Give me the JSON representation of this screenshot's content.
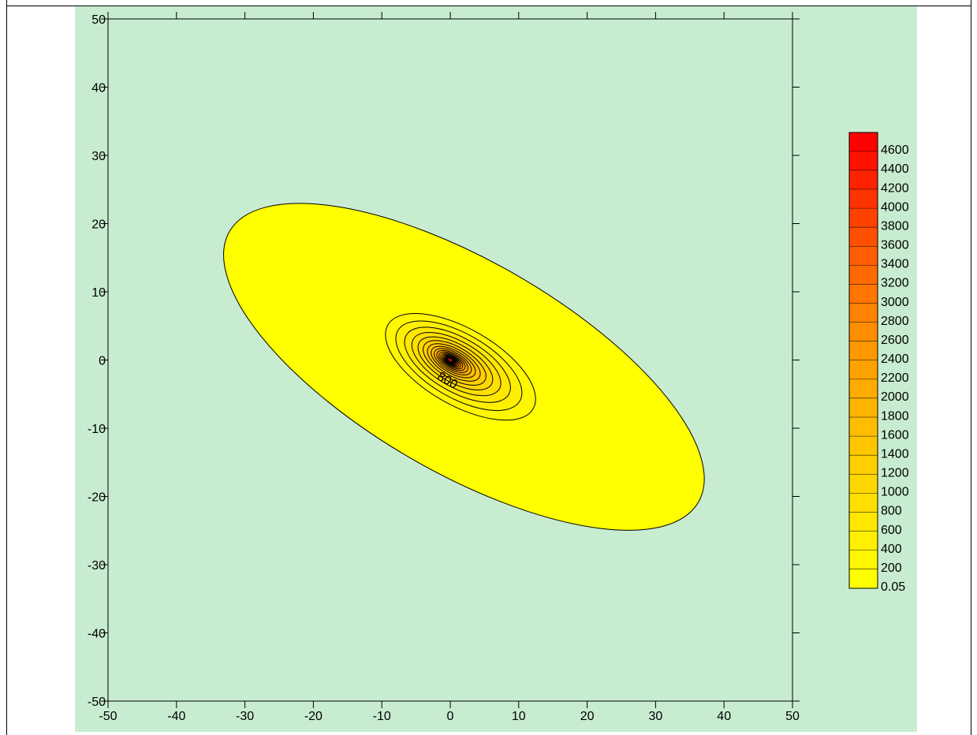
{
  "chart_data": {
    "type": "contour",
    "title": "",
    "xlabel": "",
    "ylabel": "",
    "xlim": [
      -50,
      50
    ],
    "ylim": [
      -50,
      50
    ],
    "x_ticks": [
      -50,
      -40,
      -30,
      -20,
      -10,
      0,
      10,
      20,
      30,
      40,
      50
    ],
    "y_ticks": [
      -50,
      -40,
      -30,
      -20,
      -10,
      0,
      10,
      20,
      30,
      40,
      50
    ],
    "x_tick_labels": [
      "-50",
      "-40",
      "-30",
      "-20",
      "-10",
      "0",
      "10",
      "20",
      "30",
      "40",
      "50"
    ],
    "y_tick_labels": [
      "-50",
      "-40",
      "-30",
      "-20",
      "-10",
      "0",
      "10",
      "20",
      "30",
      "40",
      "50"
    ],
    "peak_location": [
      0,
      0
    ],
    "plume_orientation": "major axis running from upper-left to lower-right",
    "outer_contour_level": 0.05,
    "outer_contour_extent": {
      "x": [
        -33,
        37
      ],
      "y": [
        -26,
        24
      ]
    },
    "inner_contour_extent": {
      "x": [
        -11,
        14
      ],
      "y": [
        -10,
        8
      ]
    },
    "contour_interval": 200,
    "contour_levels": [
      0.05,
      200,
      400,
      600,
      800,
      1000,
      1200,
      1400,
      1600,
      1800,
      2000,
      2200,
      2400,
      2600,
      2800,
      3000,
      3200,
      3400,
      3600,
      3800,
      4000,
      4200,
      4400,
      4600
    ],
    "contour_label": {
      "text": "800",
      "x": -0.7,
      "y": -3.5
    },
    "colorbar": {
      "position": "right",
      "labels": [
        "4600",
        "4400",
        "4200",
        "4000",
        "3800",
        "3600",
        "3400",
        "3200",
        "3000",
        "2800",
        "2600",
        "2400",
        "2200",
        "2000",
        "1800",
        "1600",
        "1400",
        "1200",
        "1000",
        "800",
        "600",
        "400",
        "200",
        "0.05"
      ],
      "colors": [
        "#ff0000",
        "#ff1200",
        "#ff2200",
        "#ff3300",
        "#ff4200",
        "#ff5000",
        "#ff5d00",
        "#ff6a00",
        "#ff7600",
        "#ff8200",
        "#ff8d00",
        "#ff9800",
        "#ffa200",
        "#ffab00",
        "#ffb400",
        "#ffbd00",
        "#ffc600",
        "#ffcf00",
        "#ffd700",
        "#ffdf00",
        "#ffe700",
        "#ffef00",
        "#fff700",
        "#ffff00"
      ]
    },
    "colors": {
      "background": "#c8ecd0",
      "outer_fill": "#ffff00",
      "peak": "#ff0000"
    },
    "grid": false
  }
}
